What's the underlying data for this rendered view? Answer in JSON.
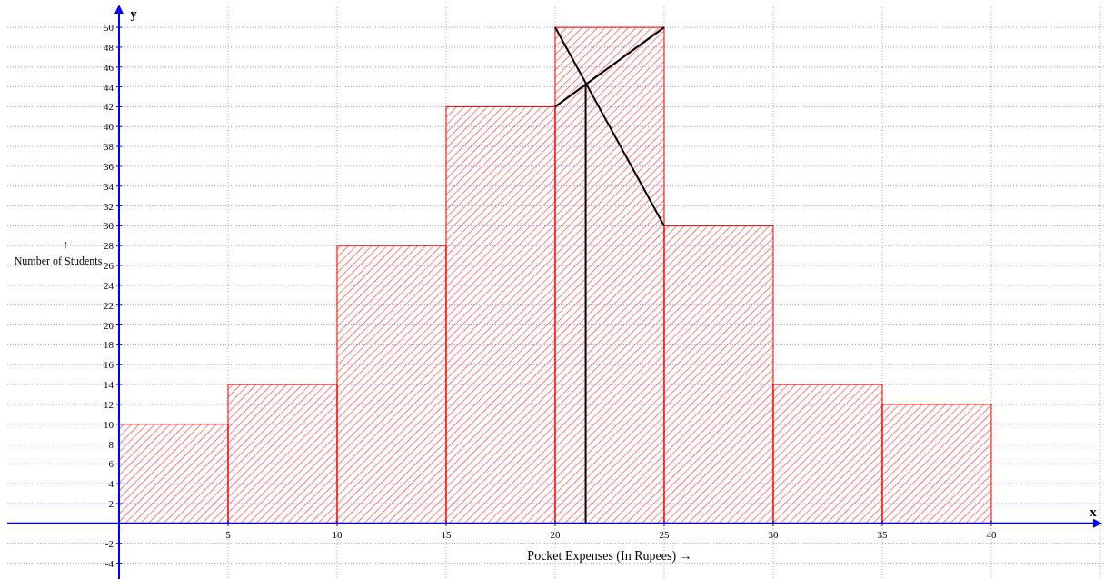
{
  "chart_data": {
    "type": "histogram",
    "xlabel": "Pocket Expenses (In Rupees) →",
    "ylabel": "↑ Number of Students",
    "annotations": [
      "x",
      "y"
    ],
    "bins": [
      0,
      5,
      10,
      15,
      20,
      25,
      30,
      35,
      40
    ],
    "values": [
      10,
      14,
      28,
      42,
      50,
      30,
      14,
      12
    ],
    "color": "#ff0000",
    "series": [
      {
        "type": "line",
        "x": [
          20,
          25
        ],
        "values": [
          50,
          30
        ],
        "color": "#000000"
      },
      {
        "type": "line",
        "x": [
          20,
          25
        ],
        "values": [
          42,
          50
        ],
        "color": "#000000"
      },
      {
        "type": "line",
        "x": [
          21.4,
          21.4
        ],
        "values": [
          44.3,
          0
        ],
        "color": "#000000"
      }
    ],
    "xlim": [
      -5.125,
      45.17
    ],
    "ylim": [
      -5.6,
      52.3
    ],
    "xticks": [
      5,
      10,
      15,
      20,
      25,
      30,
      35,
      40,
      {
        "value": 45,
        "label": null
      }
    ],
    "yticks": [
      -4,
      -2,
      2,
      4,
      6,
      8,
      10,
      12,
      14,
      16,
      18,
      20,
      22,
      24,
      26,
      28,
      30,
      32,
      34,
      36,
      38,
      40,
      42,
      44,
      46,
      48,
      50
    ],
    "grid": true
  }
}
